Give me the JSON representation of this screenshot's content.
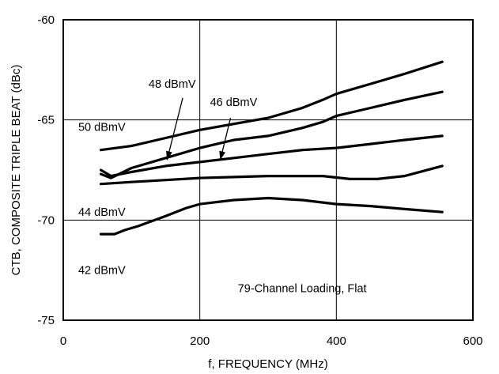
{
  "chart_data": {
    "type": "line",
    "xlabel": "f, FREQUENCY (MHz)",
    "ylabel": "CTB, COMPOSITE TRIPLE BEAT (dBc)",
    "xlim": [
      0,
      600
    ],
    "ylim": [
      -75,
      -60
    ],
    "x_ticks": [
      0,
      200,
      400,
      600
    ],
    "y_ticks": [
      -60,
      -65,
      -70,
      -75
    ],
    "x_tick_labels": [
      "0",
      "200",
      "400",
      "600"
    ],
    "y_tick_labels": [
      "-60",
      "-65",
      "-70",
      "-75"
    ],
    "grid": true,
    "annotation": "79-Channel Loading, Flat",
    "series": [
      {
        "name": "50 dBmV",
        "x": [
          55,
          100,
          150,
          200,
          250,
          300,
          350,
          380,
          400,
          450,
          500,
          555
        ],
        "y": [
          -66.5,
          -66.3,
          -65.9,
          -65.5,
          -65.2,
          -64.9,
          -64.4,
          -64.0,
          -63.7,
          -63.2,
          -62.7,
          -62.1
        ]
      },
      {
        "name": "48 dBmV",
        "x": [
          55,
          70,
          100,
          150,
          200,
          250,
          300,
          350,
          380,
          400,
          450,
          500,
          555
        ],
        "y": [
          -67.7,
          -67.9,
          -67.4,
          -66.9,
          -66.4,
          -66.0,
          -65.8,
          -65.4,
          -65.1,
          -64.8,
          -64.4,
          -64.0,
          -63.6
        ]
      },
      {
        "name": "46 dBmV",
        "x": [
          55,
          70,
          100,
          150,
          200,
          250,
          300,
          350,
          400,
          450,
          500,
          555
        ],
        "y": [
          -67.5,
          -67.8,
          -67.6,
          -67.3,
          -67.1,
          -66.9,
          -66.7,
          -66.5,
          -66.4,
          -66.2,
          -66.0,
          -65.8
        ]
      },
      {
        "name": "44 dBmV",
        "x": [
          55,
          100,
          150,
          200,
          250,
          300,
          350,
          380,
          420,
          460,
          500,
          555
        ],
        "y": [
          -68.2,
          -68.1,
          -68.0,
          -67.9,
          -67.85,
          -67.8,
          -67.8,
          -67.8,
          -67.95,
          -67.95,
          -67.8,
          -67.3
        ]
      },
      {
        "name": "42 dBmV",
        "x": [
          55,
          75,
          90,
          110,
          150,
          180,
          200,
          250,
          300,
          350,
          400,
          450,
          500,
          555
        ],
        "y": [
          -70.7,
          -70.7,
          -70.5,
          -70.3,
          -69.8,
          -69.4,
          -69.2,
          -69.0,
          -68.9,
          -69.0,
          -69.2,
          -69.3,
          -69.45,
          -69.6
        ]
      }
    ],
    "series_labels": [
      {
        "text": "50 dBmV",
        "x": 22,
        "y": -65.35
      },
      {
        "text": "48 dBmV",
        "x": 125,
        "y": -63.2
      },
      {
        "text": "46 dBmV",
        "x": 215,
        "y": -64.1
      },
      {
        "text": "44 dBmV",
        "x": 22,
        "y": -69.6
      },
      {
        "text": "42 dBmV",
        "x": 22,
        "y": -72.5
      }
    ],
    "arrows": [
      {
        "from": [
          175,
          -63.9
        ],
        "to": [
          152,
          -67.0
        ]
      },
      {
        "from": [
          245,
          -64.9
        ],
        "to": [
          230,
          -67.0
        ]
      }
    ]
  }
}
